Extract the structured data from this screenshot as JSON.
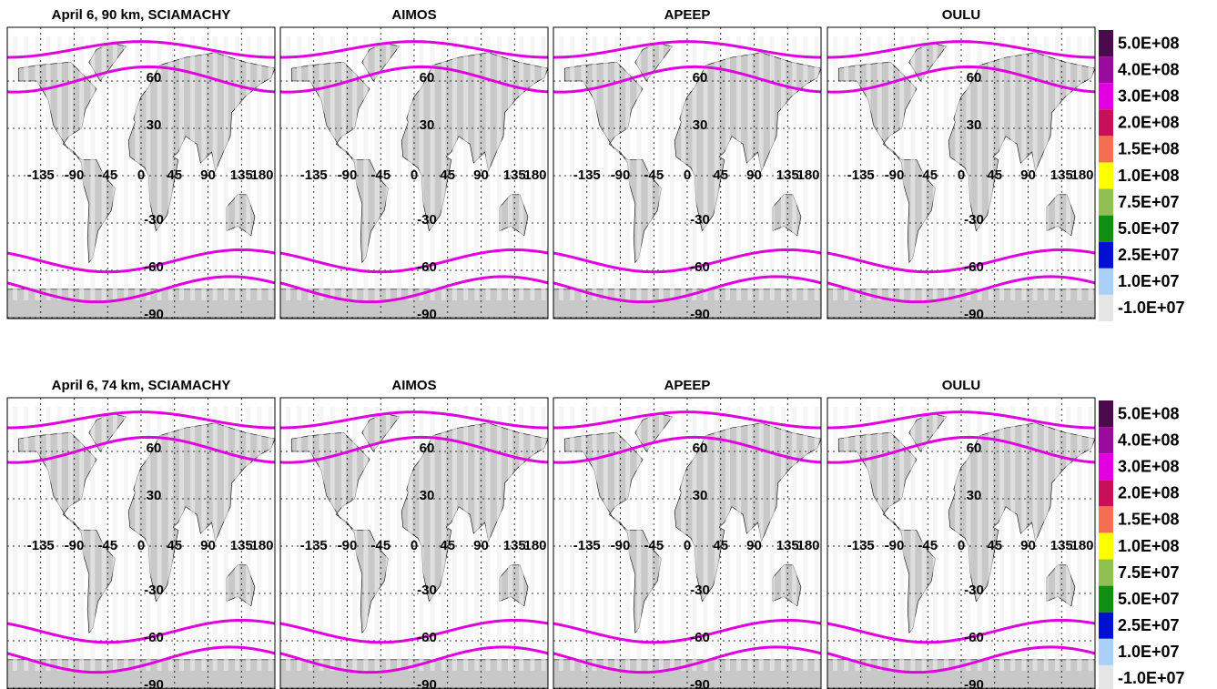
{
  "rows": [
    {
      "panels": [
        {
          "title": "April 6, 90 km, SCIAMACHY"
        },
        {
          "title": "AIMOS"
        },
        {
          "title": "APEEP"
        },
        {
          "title": "OULU"
        }
      ]
    },
    {
      "panels": [
        {
          "title": "April 6, 74 km, SCIAMACHY"
        },
        {
          "title": "AIMOS"
        },
        {
          "title": "APEEP"
        },
        {
          "title": "OULU"
        }
      ]
    }
  ],
  "lon_ticks": [
    -135,
    -90,
    -45,
    0,
    45,
    90,
    135,
    180
  ],
  "lat_ticks": [
    60,
    30,
    -30,
    -60,
    -90
  ],
  "colorbar": {
    "levels": [
      {
        "value": 500000000,
        "label": "5.0E+08",
        "color": "#4b0a4b"
      },
      {
        "value": 400000000,
        "label": "4.0E+08",
        "color": "#9a0a9e"
      },
      {
        "value": 300000000,
        "label": "3.0E+08",
        "color": "#e000e0"
      },
      {
        "value": 200000000,
        "label": "2.0E+08",
        "color": "#c8105a"
      },
      {
        "value": 150000000,
        "label": "1.5E+08",
        "color": "#f27050"
      },
      {
        "value": 100000000,
        "label": "1.0E+08",
        "color": "#ffff00"
      },
      {
        "value": 75000000,
        "label": "7.5E+07",
        "color": "#90c050"
      },
      {
        "value": 50000000,
        "label": "5.0E+07",
        "color": "#109010"
      },
      {
        "value": 25000000,
        "label": "2.5E+07",
        "color": "#0010d0"
      },
      {
        "value": 10000000,
        "label": "1.0E+07",
        "color": "#a8d0f8"
      },
      {
        "value": -10000000,
        "label": "-1.0E+07",
        "color": "#e6e6e6"
      }
    ]
  }
}
